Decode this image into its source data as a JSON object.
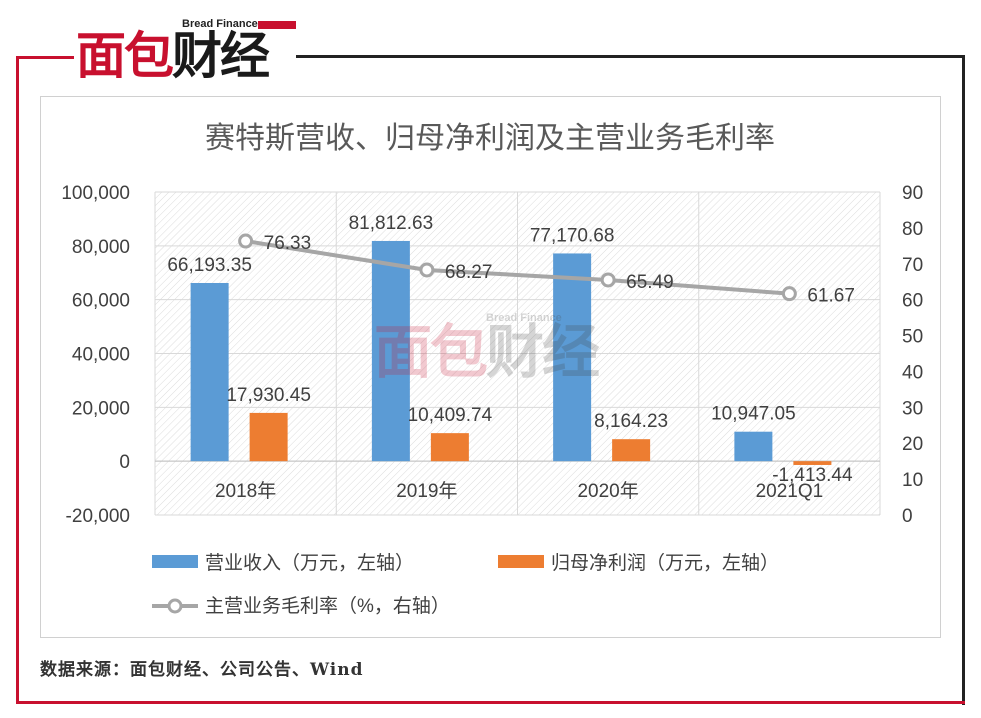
{
  "brand": {
    "name_en": "Bread Finance",
    "name_cn_red": "面包",
    "name_cn_dark": "财经"
  },
  "source_note": "数据来源：面包财经、公司公告、Wind",
  "colors": {
    "revenue": "#5b9bd5",
    "profit": "#ed7d31",
    "margin": "#a6a6a6",
    "brand_red": "#c8102e"
  },
  "chart_data": {
    "type": "bar",
    "title": "赛特斯营收、归母净利润及主营业务毛利率",
    "categories": [
      "2018年",
      "2019年",
      "2020年",
      "2021Q1"
    ],
    "series": [
      {
        "name": "营业收入（万元，左轴）",
        "type": "bar",
        "axis": "left",
        "values": [
          66193.35,
          81812.63,
          77170.68,
          10947.05
        ],
        "labels": [
          "66,193.35",
          "81,812.63",
          "77,170.68",
          "10,947.05"
        ]
      },
      {
        "name": "归母净利润（万元，左轴）",
        "type": "bar",
        "axis": "left",
        "values": [
          17930.45,
          10409.74,
          8164.23,
          -1413.44
        ],
        "labels": [
          "17,930.45",
          "10,409.74",
          "8,164.23",
          "-1,413.44"
        ]
      },
      {
        "name": "主营业务毛利率（%，右轴）",
        "type": "line",
        "axis": "right",
        "values": [
          76.33,
          68.27,
          65.49,
          61.67
        ],
        "labels": [
          "76.33",
          "68.27",
          "65.49",
          "61.67"
        ]
      }
    ],
    "y_left": {
      "min": -20000,
      "max": 100000,
      "ticks": [
        "100,000",
        "80,000",
        "60,000",
        "40,000",
        "20,000",
        "0",
        "-20,000"
      ]
    },
    "y_right": {
      "min": 0,
      "max": 90,
      "ticks": [
        "90",
        "80",
        "70",
        "60",
        "50",
        "40",
        "30",
        "20",
        "10",
        "0"
      ]
    },
    "legend_position": "bottom",
    "grid": true
  }
}
